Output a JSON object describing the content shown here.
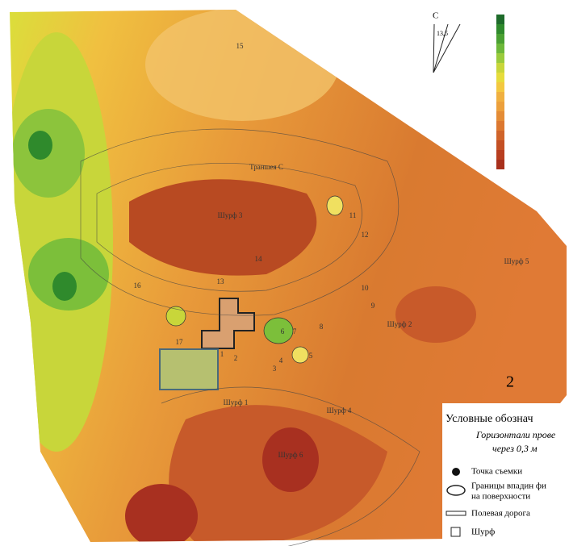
{
  "north_label": "С",
  "angle_label": "13,5",
  "map_labels": [
    "15",
    "Траншея С",
    "Шурф 3",
    "11",
    "12",
    "14",
    "Шурф 5",
    "16",
    "13",
    "10",
    "9",
    "Шурф 2",
    "17",
    "8",
    "7",
    "6",
    "5",
    "4",
    "3",
    "2",
    "1",
    "Шурф 1",
    "Шурф 4",
    "Шурф 6"
  ],
  "panel_number": "2",
  "legend": {
    "title": "Условные обознач",
    "contours_line1": "Горизонтали прове",
    "contours_line2": "через 0,3 м",
    "items": [
      "Точка съемки",
      "Границы впадин фи",
      "на поверхности",
      "Полевая дорога",
      "Шурф"
    ]
  }
}
